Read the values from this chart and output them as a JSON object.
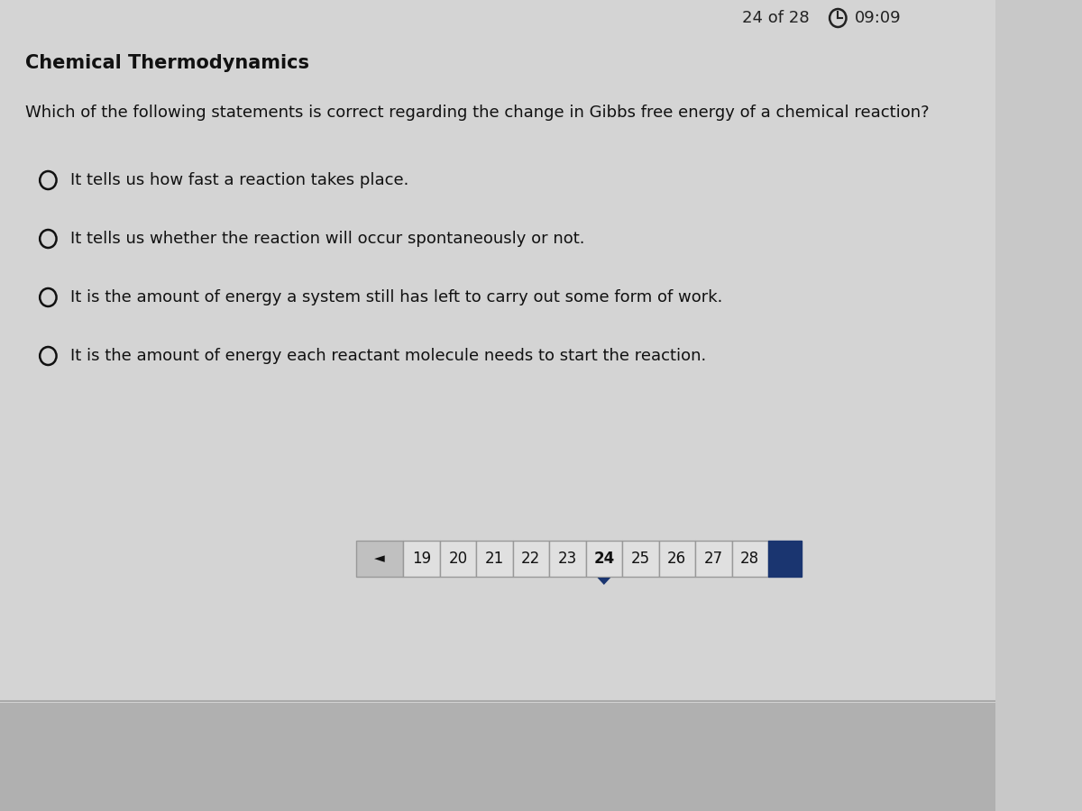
{
  "bg_color": "#c8c8c8",
  "content_bg": "#d8d8d8",
  "title": "Chemical Thermodynamics",
  "question": "Which of the following statements is correct regarding the change in Gibbs free energy of a chemical reaction?",
  "options": [
    "It tells us how fast a reaction takes place.",
    "It tells us whether the reaction will occur spontaneously or not.",
    "It is the amount of energy a system still has left to carry out some form of work.",
    "It is the amount of energy each reactant molecule needs to start the reaction."
  ],
  "header_text": "24 of 28",
  "timer_text": "09:09",
  "nav_numbers": [
    "19",
    "20",
    "21",
    "22",
    "23",
    "24",
    "25",
    "26",
    "27",
    "28"
  ],
  "current_page": "24",
  "active_color": "#1a3570",
  "text_color": "#111111",
  "header_color": "#222222",
  "nav_btn_bg": "#e0e0e0",
  "nav_btn_border": "#999999",
  "back_btn_bg": "#c0c0c0",
  "blue_rect_color": "#1a3570",
  "separator_color": "#bbbbbb"
}
